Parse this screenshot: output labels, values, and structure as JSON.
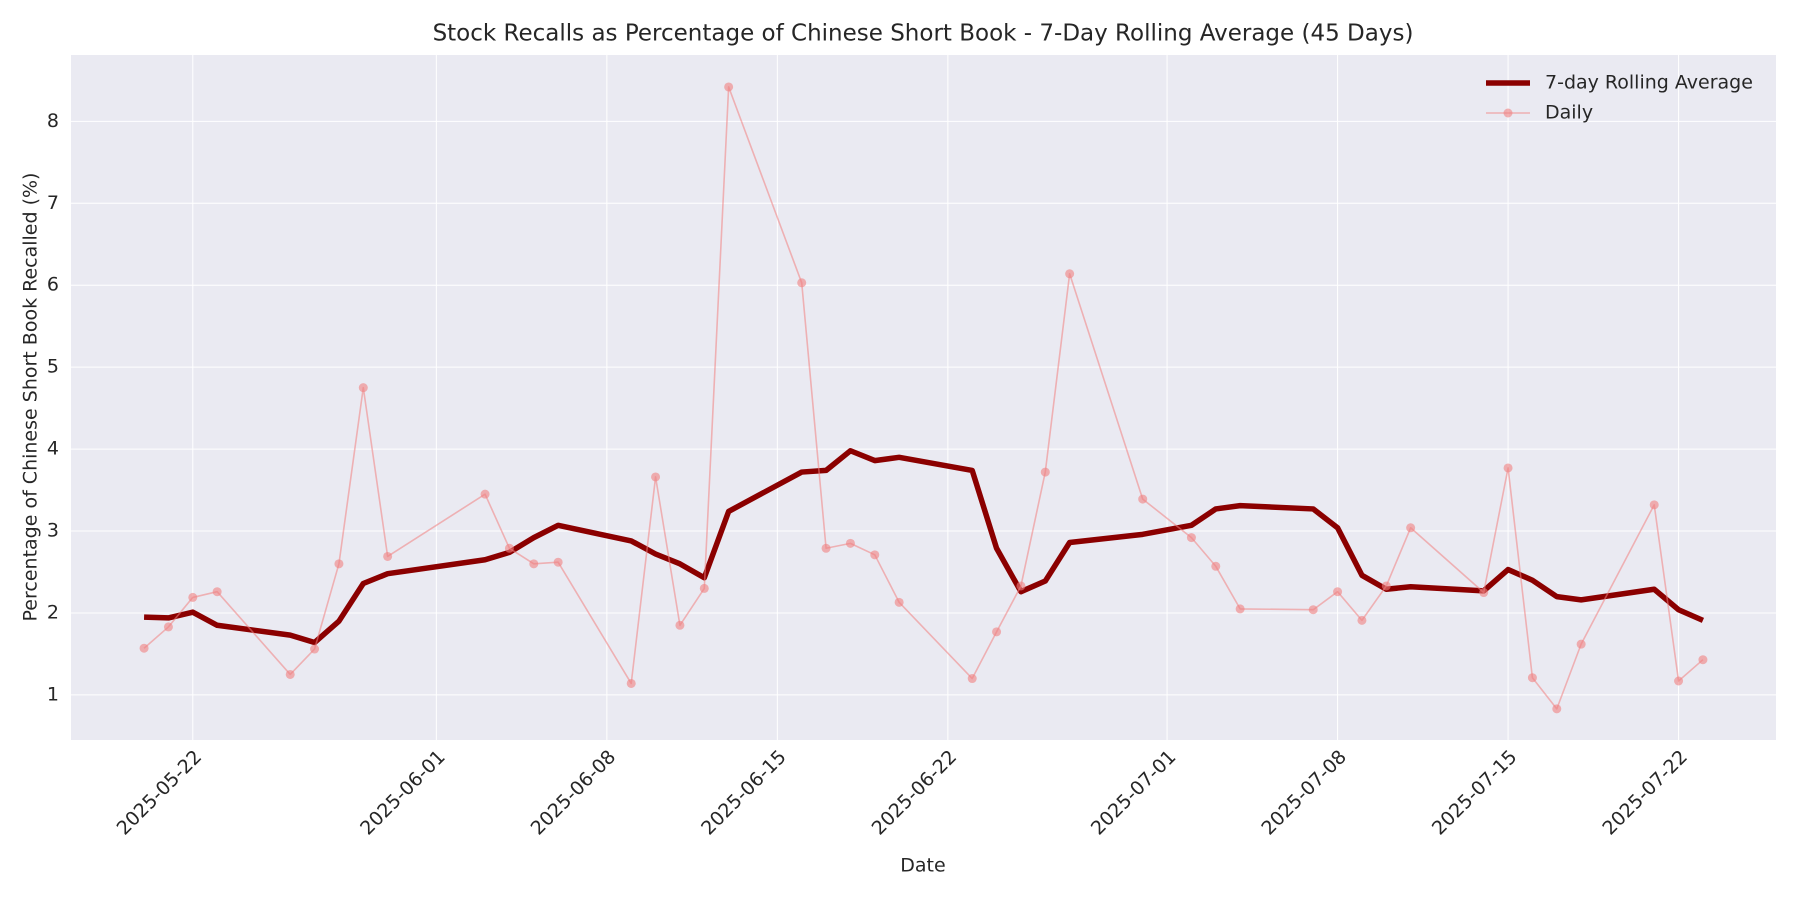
{
  "chart_data": {
    "type": "line",
    "title": "Stock Recalls as Percentage of Chinese Short Book - 7-Day Rolling Average (45 Days)",
    "x_label": "Date",
    "y_label": "Percentage of Chinese Short Book Recalled (%)",
    "x": [
      "2025-05-20",
      "2025-05-21",
      "2025-05-22",
      "2025-05-23",
      "2025-05-26",
      "2025-05-27",
      "2025-05-28",
      "2025-05-29",
      "2025-05-30",
      "2025-06-03",
      "2025-06-04",
      "2025-06-05",
      "2025-06-06",
      "2025-06-09",
      "2025-06-10",
      "2025-06-11",
      "2025-06-12",
      "2025-06-13",
      "2025-06-16",
      "2025-06-17",
      "2025-06-18",
      "2025-06-19",
      "2025-06-20",
      "2025-06-23",
      "2025-06-24",
      "2025-06-25",
      "2025-06-26",
      "2025-06-27",
      "2025-06-30",
      "2025-07-02",
      "2025-07-03",
      "2025-07-04",
      "2025-07-07",
      "2025-07-08",
      "2025-07-09",
      "2025-07-10",
      "2025-07-11",
      "2025-07-14",
      "2025-07-15",
      "2025-07-16",
      "2025-07-17",
      "2025-07-18",
      "2025-07-21",
      "2025-07-22",
      "2025-07-23"
    ],
    "series": [
      {
        "name": "7-day Rolling Average",
        "color": "#8b0000",
        "values": [
          1.95,
          1.94,
          2.01,
          1.85,
          1.73,
          1.64,
          1.9,
          2.36,
          2.48,
          2.65,
          2.74,
          2.92,
          3.07,
          2.88,
          2.72,
          2.6,
          2.43,
          3.24,
          3.72,
          3.74,
          3.98,
          3.86,
          3.9,
          3.74,
          2.79,
          2.26,
          2.39,
          2.86,
          2.96,
          3.07,
          3.27,
          3.31,
          3.27,
          3.04,
          2.46,
          2.29,
          2.32,
          2.27,
          2.53,
          2.4,
          2.2,
          2.16,
          2.29,
          2.04,
          1.91
        ]
      },
      {
        "name": "Daily",
        "color": "#f08080",
        "values": [
          1.57,
          1.83,
          2.19,
          2.26,
          1.25,
          1.56,
          2.6,
          4.75,
          2.69,
          3.45,
          2.79,
          2.6,
          2.62,
          1.14,
          3.66,
          1.85,
          2.3,
          8.42,
          6.03,
          2.79,
          2.85,
          2.71,
          2.13,
          1.2,
          1.77,
          2.33,
          3.72,
          6.14,
          3.39,
          2.92,
          2.57,
          2.05,
          2.04,
          2.26,
          1.91,
          2.33,
          3.04,
          2.25,
          3.77,
          1.21,
          0.83,
          1.62,
          3.32,
          1.17,
          1.43
        ]
      }
    ],
    "xlim": [
      "2025-05-17",
      "2025-07-26"
    ],
    "xticks": [
      "2025-05-22",
      "2025-06-01",
      "2025-06-08",
      "2025-06-15",
      "2025-06-22",
      "2025-07-01",
      "2025-07-08",
      "2025-07-15",
      "2025-07-22"
    ],
    "ylim": [
      0.45,
      8.81
    ],
    "yticks": [
      1,
      2,
      3,
      4,
      5,
      6,
      7,
      8
    ],
    "grid": true,
    "legend": "upper right"
  }
}
